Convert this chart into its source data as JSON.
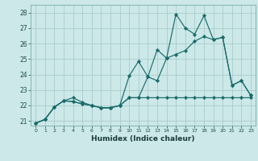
{
  "xlabel": "Humidex (Indice chaleur)",
  "bg_color": "#cce8e8",
  "grid_color": "#aacccc",
  "line_color": "#1a6b6b",
  "xlim": [
    -0.5,
    23.5
  ],
  "ylim": [
    20.7,
    28.5
  ],
  "yticks": [
    21,
    22,
    23,
    24,
    25,
    26,
    27,
    28
  ],
  "xticks": [
    0,
    1,
    2,
    3,
    4,
    5,
    6,
    7,
    8,
    9,
    10,
    11,
    12,
    13,
    14,
    15,
    16,
    17,
    18,
    19,
    20,
    21,
    22,
    23
  ],
  "line1_x": [
    0,
    1,
    2,
    3,
    4,
    5,
    6,
    7,
    8,
    9,
    10,
    11,
    12,
    13,
    14,
    15,
    16,
    17,
    18,
    19,
    20,
    21,
    22,
    23
  ],
  "line1_y": [
    20.85,
    21.1,
    21.9,
    22.3,
    22.25,
    22.1,
    22.0,
    21.85,
    21.85,
    22.0,
    22.5,
    22.5,
    22.5,
    22.5,
    22.5,
    22.5,
    22.5,
    22.5,
    22.5,
    22.5,
    22.5,
    22.5,
    22.5,
    22.5
  ],
  "line2_x": [
    0,
    1,
    2,
    3,
    4,
    5,
    6,
    7,
    8,
    9,
    10,
    11,
    12,
    13,
    14,
    15,
    16,
    17,
    18,
    19,
    20,
    21,
    22,
    23
  ],
  "line2_y": [
    20.85,
    21.1,
    21.9,
    22.3,
    22.25,
    22.1,
    22.0,
    21.85,
    21.85,
    22.0,
    22.5,
    22.5,
    23.85,
    23.6,
    25.05,
    25.3,
    25.55,
    26.15,
    26.45,
    26.25,
    26.4,
    23.3,
    23.6,
    22.65
  ],
  "line3_x": [
    0,
    1,
    2,
    3,
    4,
    5,
    6,
    7,
    8,
    9,
    10,
    11,
    12,
    13,
    14,
    15,
    16,
    17,
    18,
    19,
    20,
    21,
    22,
    23
  ],
  "line3_y": [
    20.85,
    21.1,
    21.9,
    22.3,
    22.5,
    22.2,
    22.0,
    21.85,
    21.85,
    22.0,
    23.9,
    24.85,
    23.85,
    25.6,
    25.05,
    27.9,
    27.0,
    26.6,
    27.8,
    26.25,
    26.4,
    23.3,
    23.6,
    22.65
  ]
}
